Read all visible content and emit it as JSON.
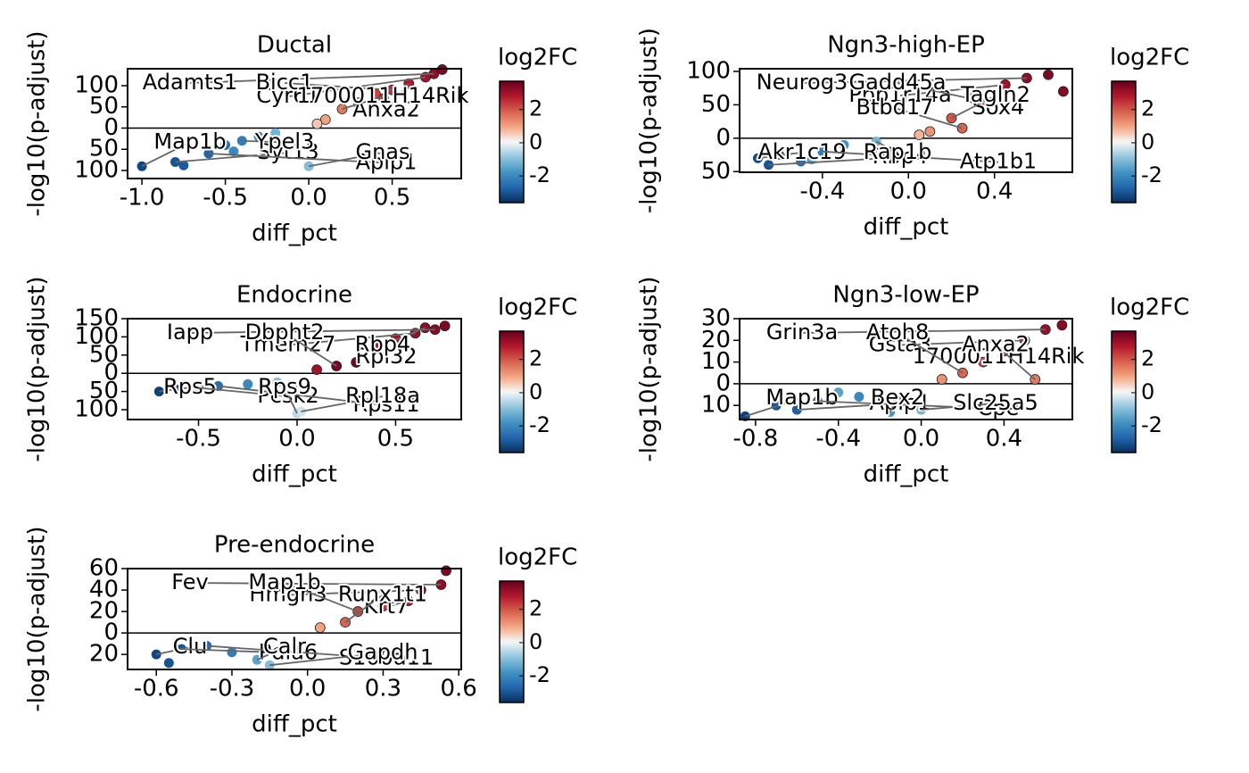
{
  "colormap": [
    "#053061",
    "#2166ac",
    "#4393c3",
    "#92c5de",
    "#f7f7f7",
    "#f4a582",
    "#d6604d",
    "#b2182b",
    "#67001f"
  ],
  "chart_data": [
    {
      "type": "scatter",
      "title": "Ductal",
      "x_label": "diff_pct",
      "y_label": "-log10(p-adjust)",
      "xlim": [
        -1.086,
        0.914
      ],
      "xticks": [
        {
          "value": -1,
          "label": "-1.0"
        },
        -0.5,
        {
          "value": 0,
          "label": "0.0"
        },
        0.5
      ],
      "ylim": [
        -119,
        140
      ],
      "yticks": [
        100,
        50,
        0,
        {
          "value": -50,
          "label": "50"
        },
        {
          "value": -100,
          "label": "100"
        }
      ],
      "x": [
        0.8,
        0.75,
        0.7,
        0.6,
        0.5,
        0.4,
        0.3,
        0.2,
        0.1,
        0.05,
        0.3,
        0.45,
        -1.0,
        -0.8,
        -0.75,
        -0.6,
        -0.5,
        -0.4,
        -0.3,
        -0.2,
        -0.45,
        0.0
      ],
      "y": [
        138,
        128,
        120,
        105,
        90,
        80,
        60,
        45,
        20,
        10,
        55,
        70,
        -90,
        -80,
        -88,
        -60,
        -40,
        -30,
        -20,
        -12,
        -55,
        -90
      ],
      "log2fc": [
        3.4,
        3.2,
        3.0,
        2.8,
        2.5,
        2.2,
        1.8,
        1.5,
        1.0,
        0.6,
        2.0,
        2.4,
        -3.2,
        -3.0,
        -2.9,
        -2.7,
        -2.5,
        -2.2,
        -1.9,
        -1.2,
        -2.0,
        -1.0
      ],
      "genes": [
        null,
        "Adamts1",
        "Cyr61",
        "Anxa2",
        "Bicc1",
        null,
        null,
        "1700011H14Rik",
        null,
        null,
        null,
        null,
        "Map1b",
        "Syt13",
        null,
        "Aplp1",
        null,
        "Ypel3",
        null,
        null,
        null,
        "Gnas"
      ],
      "legend_title": "log2FC",
      "clim": [
        -3.6,
        3.7
      ],
      "cticks": [
        2,
        0,
        -2
      ]
    },
    {
      "type": "scatter",
      "title": "Ngn3-high-EP",
      "x_label": "diff_pct",
      "y_label": "-log10(p-adjust)",
      "xlim": [
        -0.785,
        0.762
      ],
      "xticks": [
        -0.4,
        {
          "value": 0,
          "label": "0.0"
        },
        0.4
      ],
      "ylim": [
        -51,
        104
      ],
      "yticks": [
        100,
        50,
        0,
        {
          "value": -50,
          "label": "50"
        }
      ],
      "x": [
        0.72,
        0.65,
        0.55,
        0.45,
        0.3,
        0.35,
        0.2,
        0.25,
        0.1,
        0.05,
        -0.7,
        -0.65,
        -0.6,
        -0.5,
        -0.4,
        -0.3,
        -0.15,
        -0.45
      ],
      "y": [
        70,
        95,
        90,
        80,
        60,
        55,
        30,
        15,
        10,
        5,
        -30,
        -40,
        -25,
        -35,
        -20,
        -10,
        -5,
        -32
      ],
      "log2fc": [
        3.3,
        3.4,
        3.2,
        3.0,
        2.6,
        2.7,
        2.0,
        1.8,
        1.2,
        0.8,
        -3.2,
        -3.0,
        -2.8,
        -2.5,
        -2.2,
        -1.8,
        -1.2,
        -1.5
      ],
      "genes": [
        null,
        null,
        "Neurog3",
        "Ppp1r14a",
        "Sox4",
        "Gadd45a",
        "Tagln2",
        "Btbd17",
        null,
        null,
        "Akr1c19",
        "Rbp4",
        null,
        null,
        "Atp1b1",
        null,
        "Rap1b",
        null
      ],
      "legend_title": "log2FC",
      "clim": [
        -3.6,
        3.7
      ],
      "cticks": [
        2,
        0,
        -2
      ]
    },
    {
      "type": "scatter",
      "title": "Endocrine",
      "x_label": "diff_pct",
      "y_label": "-log10(p-adjust)",
      "xlim": [
        -0.86,
        0.833
      ],
      "xticks": [
        -0.5,
        {
          "value": 0,
          "label": "0.0"
        },
        0.5
      ],
      "ylim": [
        -127,
        150
      ],
      "yticks": [
        150,
        100,
        50,
        0,
        {
          "value": -50,
          "label": "50"
        },
        {
          "value": -100,
          "label": "100"
        }
      ],
      "x": [
        0.75,
        0.7,
        0.6,
        0.5,
        0.4,
        0.3,
        0.2,
        0.1,
        0.65,
        -0.7,
        -0.6,
        -0.5,
        -0.4,
        -0.25,
        -0.1,
        0.0,
        0.02
      ],
      "y": [
        130,
        120,
        110,
        95,
        70,
        30,
        20,
        10,
        125,
        -50,
        -45,
        -40,
        -35,
        -30,
        -25,
        -110,
        -105
      ],
      "log2fc": [
        3.4,
        3.3,
        3.1,
        3.0,
        2.8,
        3.5,
        3.5,
        3.0,
        3.2,
        -3.3,
        -3.0,
        -2.8,
        -2.5,
        -2.0,
        -1.0,
        -0.5,
        -0.3
      ],
      "genes": [
        null,
        "Iapp",
        "Tmem27",
        null,
        "Rpl32",
        null,
        "Dbpht2",
        null,
        "Rbp4",
        "Rps5",
        null,
        "Pcsk2",
        "Rps11",
        null,
        null,
        "Rps9",
        "Rpl18a"
      ],
      "legend_title": "log2FC",
      "clim": [
        -3.6,
        3.7
      ],
      "cticks": [
        2,
        0,
        -2
      ]
    },
    {
      "type": "scatter",
      "title": "Ngn3-low-EP",
      "x_label": "diff_pct",
      "y_label": "-log10(p-adjust)",
      "xlim": [
        -0.877,
        0.73
      ],
      "xticks": [
        -0.8,
        -0.4,
        {
          "value": 0,
          "label": "0.0"
        },
        0.4
      ],
      "ylim": [
        -16.5,
        30
      ],
      "yticks": [
        30,
        20,
        10,
        0,
        {
          "value": -10,
          "label": "10"
        }
      ],
      "x": [
        0.68,
        0.6,
        0.5,
        0.4,
        0.3,
        0.2,
        0.1,
        0.55,
        -0.85,
        -0.7,
        -0.6,
        -0.5,
        -0.3,
        -0.15,
        0.0,
        -0.4
      ],
      "y": [
        27,
        25,
        20,
        15,
        10,
        5,
        2,
        2,
        -15,
        -10,
        -12,
        -8,
        -6,
        -13,
        -12,
        -4
      ],
      "log2fc": [
        3.3,
        3.1,
        2.8,
        2.5,
        2.2,
        1.8,
        1.2,
        1.5,
        -3.3,
        -3.0,
        -2.8,
        -2.5,
        -2.0,
        -1.8,
        -1.2,
        -1.5
      ],
      "genes": [
        null,
        "Grin3a",
        "Gsta3",
        "1700011H14Rik",
        null,
        "Atoh8",
        null,
        "Anxa2",
        "Map1b",
        null,
        "Aplp1",
        "Cpe",
        null,
        "Bex2",
        "Slc25a5",
        null
      ],
      "legend_title": "log2FC",
      "clim": [
        -3.6,
        3.7
      ],
      "cticks": [
        2,
        0,
        -2
      ]
    },
    {
      "type": "scatter",
      "title": "Pre-endocrine",
      "x_label": "diff_pct",
      "y_label": "-log10(p-adjust)",
      "xlim": [
        -0.714,
        0.61
      ],
      "xticks": [
        -0.6,
        -0.3,
        {
          "value": 0,
          "label": "0.0"
        },
        0.3,
        0.6
      ],
      "ylim": [
        -34,
        60
      ],
      "yticks": [
        60,
        40,
        20,
        0,
        {
          "value": -20,
          "label": "20"
        }
      ],
      "x": [
        0.55,
        0.53,
        0.45,
        0.4,
        0.3,
        0.2,
        0.15,
        0.05,
        -0.6,
        -0.5,
        -0.4,
        -0.3,
        -0.2,
        -0.15,
        -0.55
      ],
      "y": [
        58,
        45,
        40,
        30,
        25,
        20,
        10,
        5,
        -20,
        -15,
        -12,
        -18,
        -25,
        -30,
        -28
      ],
      "log2fc": [
        3.4,
        3.2,
        3.0,
        2.8,
        2.4,
        2.2,
        1.8,
        1.0,
        -3.2,
        -3.0,
        -2.7,
        -2.2,
        -1.5,
        -1.0,
        -3.0
      ],
      "genes": [
        null,
        "Fev",
        "Hmgn3",
        "Krt7",
        null,
        "Map1b",
        "Runx1t1",
        null,
        "Clu",
        "Pdia6",
        "S100a11",
        null,
        "Calr",
        "Gapdh",
        null
      ],
      "legend_title": "log2FC",
      "clim": [
        -3.6,
        3.7
      ],
      "cticks": [
        2,
        0,
        -2
      ]
    }
  ]
}
